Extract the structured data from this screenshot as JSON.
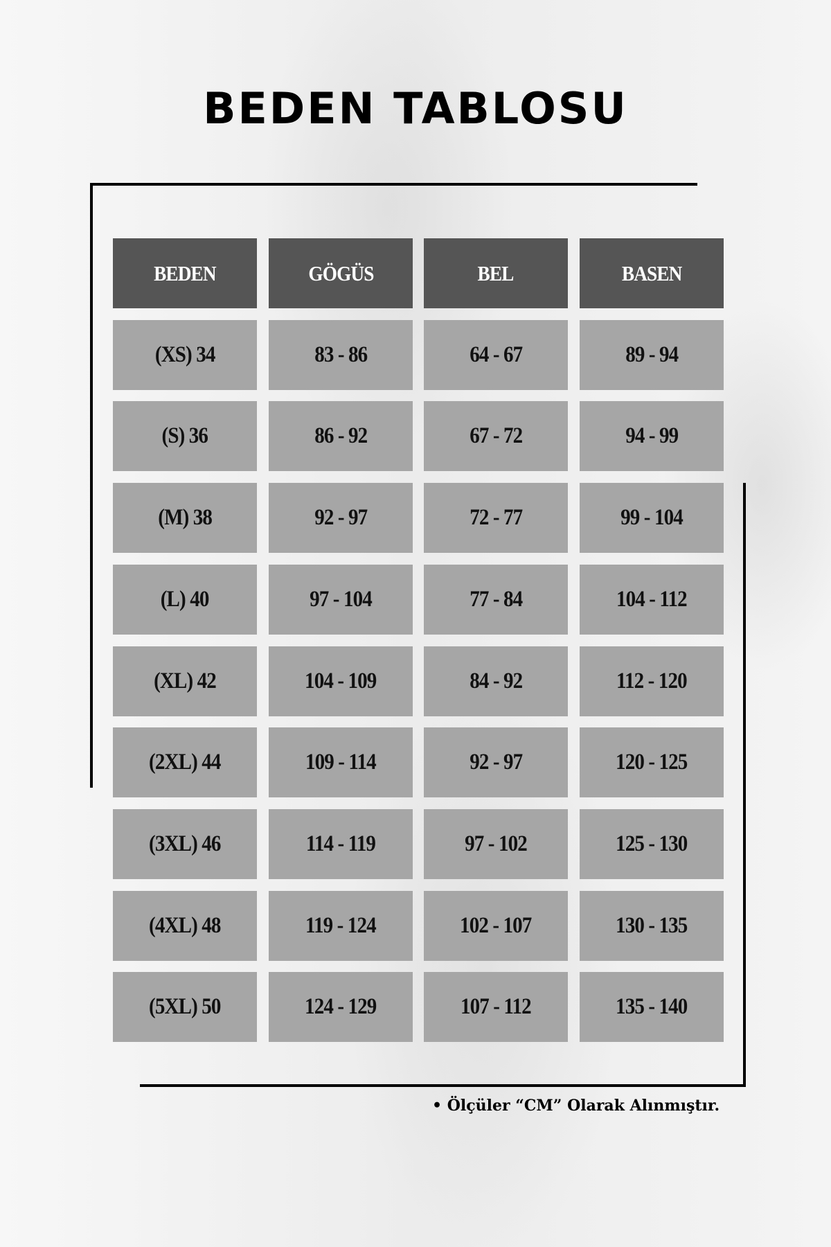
{
  "title": "BEDEN TABLOSU",
  "table": {
    "headers": [
      "BEDEN",
      "GÖGÜS",
      "BEL",
      "BASEN"
    ],
    "rows": [
      [
        "(XS) 34",
        "83 - 86",
        "64 - 67",
        "89 - 94"
      ],
      [
        "(S) 36",
        "86 - 92",
        "67 - 72",
        "94 - 99"
      ],
      [
        "(M) 38",
        "92 - 97",
        "72 - 77",
        "99 - 104"
      ],
      [
        "(L) 40",
        "97 - 104",
        "77 - 84",
        "104 - 112"
      ],
      [
        "(XL) 42",
        "104 - 109",
        "84 - 92",
        "112 - 120"
      ],
      [
        "(2XL) 44",
        "109 - 114",
        "92 - 97",
        "120 - 125"
      ],
      [
        "(3XL) 46",
        "114 - 119",
        "97 - 102",
        "125 - 130"
      ],
      [
        "(4XL) 48",
        "119 - 124",
        "102 - 107",
        "130 - 135"
      ],
      [
        "(5XL) 50",
        "124 - 129",
        "107 - 112",
        "135 - 140"
      ]
    ]
  },
  "footnote": "• Ölçüler “CM” Olarak Alınmıştır.",
  "colors": {
    "header_bg": "#555555",
    "cell_bg": "#a6a6a6",
    "frame": "#000000"
  }
}
